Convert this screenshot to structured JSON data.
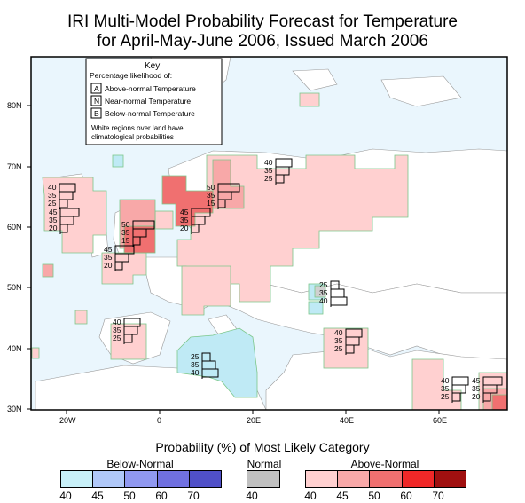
{
  "title": {
    "line1": "IRI Multi-Model Probability Forecast for Temperature",
    "line2": "for April-May-June 2006, Issued March 2006"
  },
  "key": {
    "heading": "Key",
    "subheading": "Percentage likelihood of:",
    "items": [
      {
        "letter": "A",
        "label": "Above-normal Temperature"
      },
      {
        "letter": "N",
        "label": "Near-normal Temperature"
      },
      {
        "letter": "B",
        "label": "Below-normal Temperature"
      }
    ],
    "note_line1": "White regions over land have",
    "note_line2": "climatological probabilities"
  },
  "axes": {
    "lat_labels": [
      "80N",
      "70N",
      "60N",
      "50N",
      "40N",
      "30N"
    ],
    "lon_labels": [
      "20W",
      "0",
      "20E",
      "40E",
      "60E"
    ]
  },
  "forecast_boxes": [
    {
      "values": [
        "40",
        "35",
        "25"
      ]
    },
    {
      "values": [
        "40",
        "35",
        "25"
      ]
    },
    {
      "values": [
        "50",
        "35",
        "15"
      ]
    },
    {
      "values": [
        "45",
        "35",
        "20"
      ]
    },
    {
      "values": [
        "45",
        "35",
        "20"
      ]
    },
    {
      "values": [
        "50",
        "35",
        "15"
      ]
    },
    {
      "values": [
        "45",
        "35",
        "20"
      ]
    },
    {
      "values": [
        "25",
        "35",
        "40"
      ]
    },
    {
      "values": [
        "40",
        "35",
        "25"
      ]
    },
    {
      "values": [
        "40",
        "35",
        "25"
      ]
    },
    {
      "values": [
        "25",
        "35",
        "40"
      ]
    },
    {
      "values": [
        "40",
        "35",
        "25"
      ]
    },
    {
      "values": [
        "45",
        "35",
        "20"
      ]
    }
  ],
  "legend": {
    "title": "Probability (%) of Most Likely Category",
    "below_label": "Below-Normal",
    "normal_label": "Normal",
    "above_label": "Above-Normal",
    "below_ticks": [
      "40",
      "45",
      "50",
      "60",
      "70"
    ],
    "normal_ticks": [
      "40"
    ],
    "above_ticks": [
      "40",
      "45",
      "50",
      "60",
      "70"
    ],
    "below_colors": [
      "#c8f0f8",
      "#b0c8f8",
      "#9098f0",
      "#7070e0",
      "#5050c8"
    ],
    "normal_colors": [
      "#c0c0c0"
    ],
    "above_colors": [
      "#ffd0d0",
      "#f8a8a8",
      "#f07070",
      "#f02828",
      "#a01010"
    ]
  }
}
